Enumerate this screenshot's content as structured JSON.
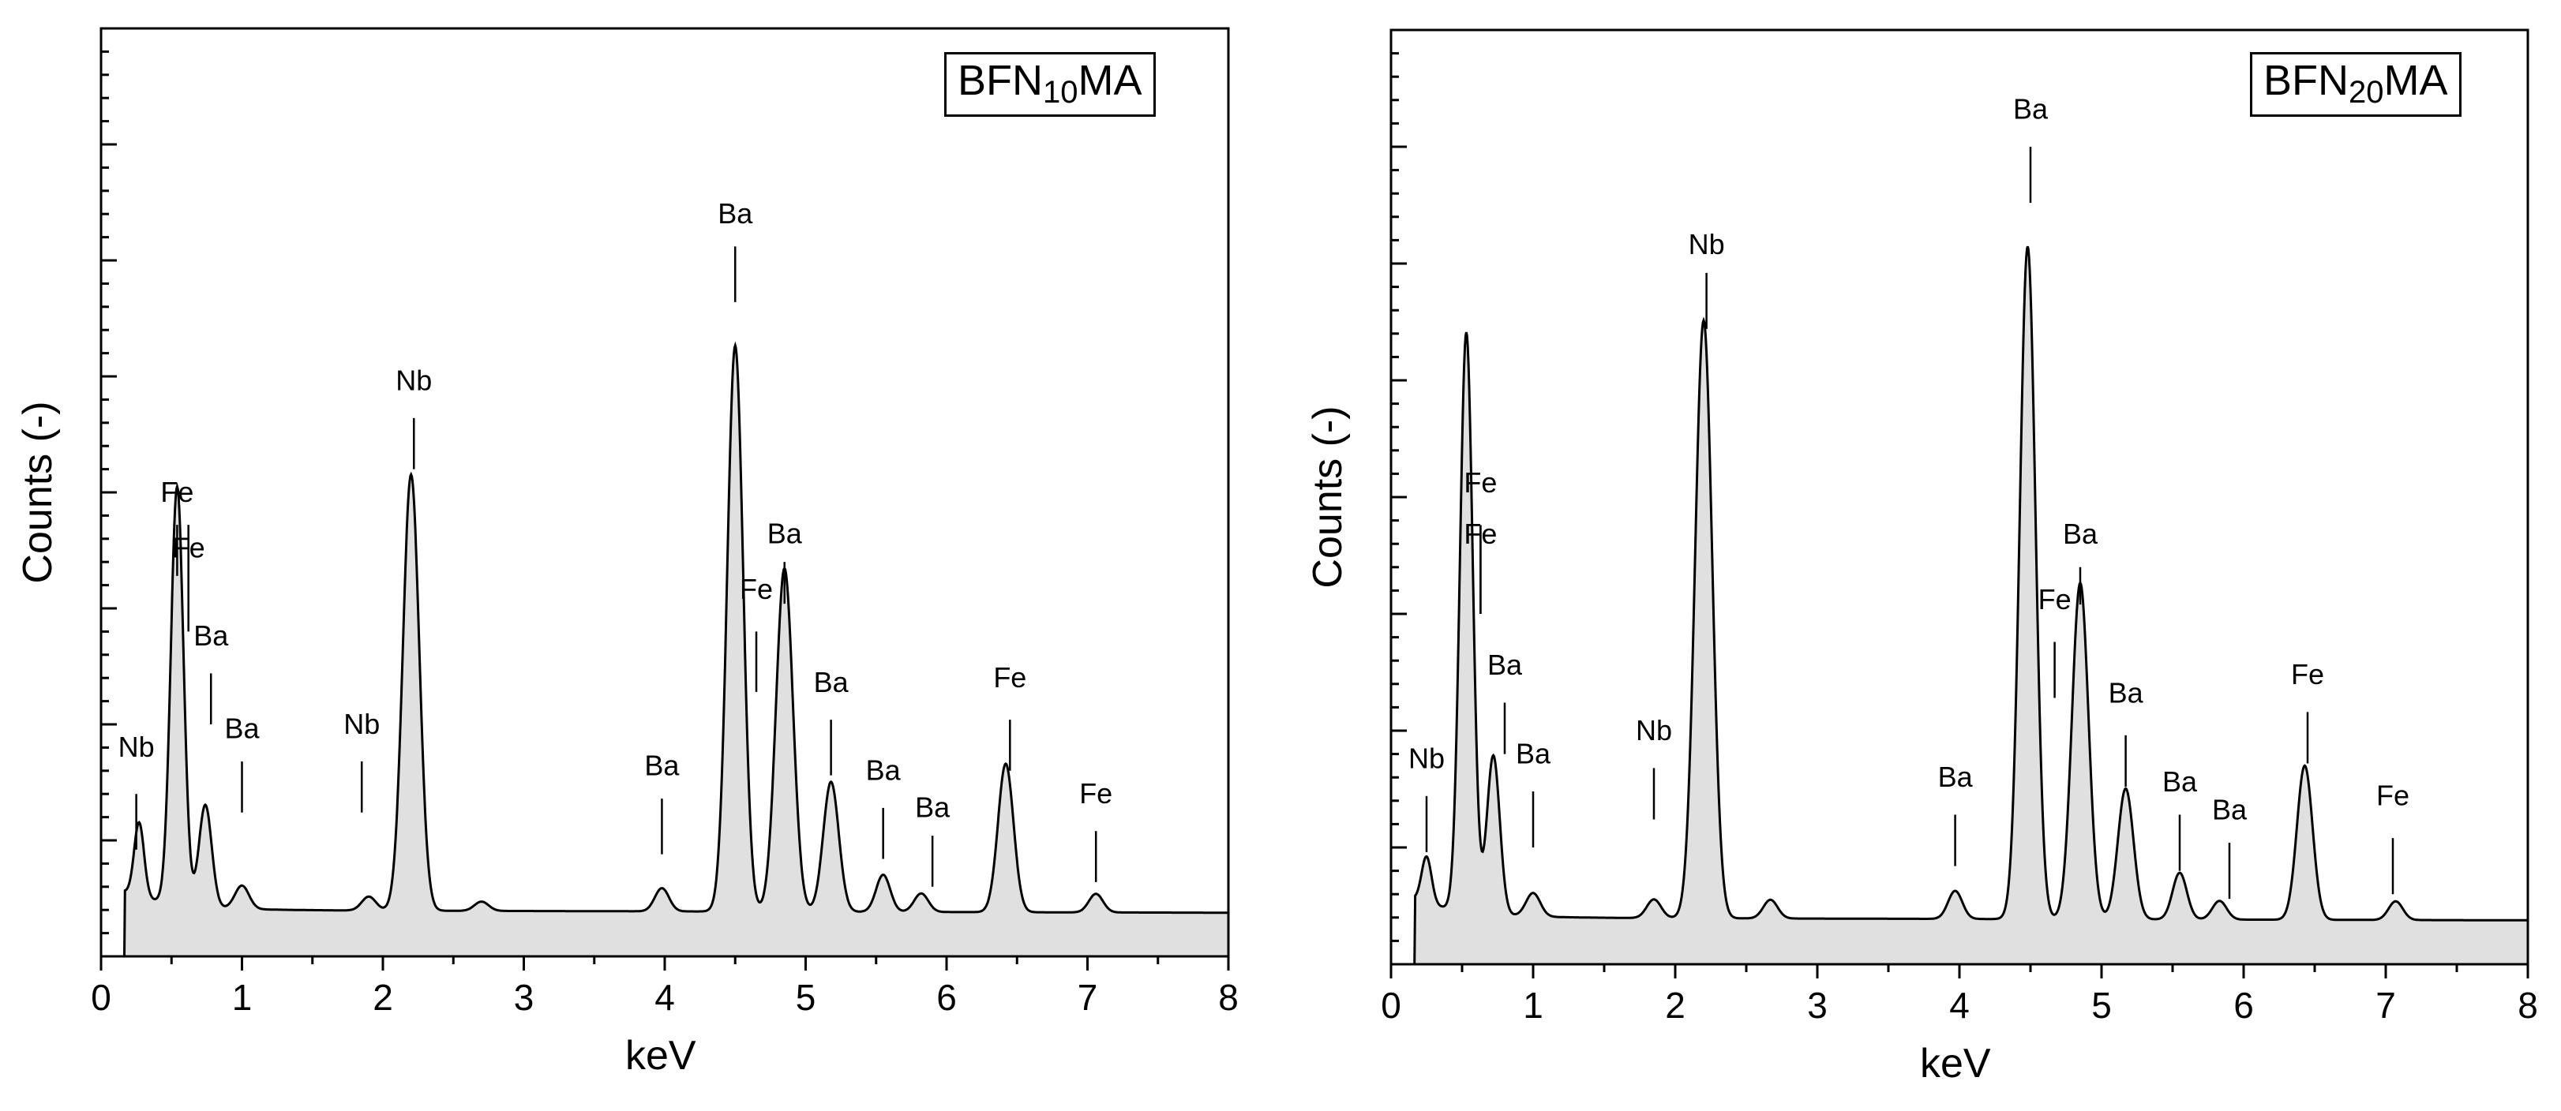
{
  "chart_data": [
    {
      "type": "line",
      "title_parts": {
        "prefix": "BFN",
        "subscript": "10",
        "suffix": "MA"
      },
      "xlabel": "keV",
      "ylabel": "Counts (-)",
      "xlim": [
        0,
        8
      ],
      "x_ticks": [
        "0",
        "1",
        "2",
        "3",
        "4",
        "5",
        "6",
        "7",
        "8"
      ],
      "ylim": [
        0,
        100
      ],
      "fill_color": "#e0e0e0",
      "line_color": "#000000",
      "baseline_start": 0.17,
      "background": 5,
      "peaks": [
        {
          "x": 0.27,
          "h": 8,
          "w": 0.035
        },
        {
          "x": 0.54,
          "h": 45,
          "w": 0.045
        },
        {
          "x": 0.74,
          "h": 11,
          "w": 0.045
        },
        {
          "x": 1.0,
          "h": 2.5,
          "w": 0.05
        },
        {
          "x": 1.9,
          "h": 1.5,
          "w": 0.05
        },
        {
          "x": 2.2,
          "h": 47,
          "w": 0.058
        },
        {
          "x": 2.7,
          "h": 1,
          "w": 0.05
        },
        {
          "x": 3.98,
          "h": 2.5,
          "w": 0.05
        },
        {
          "x": 4.5,
          "h": 61,
          "w": 0.056
        },
        {
          "x": 4.85,
          "h": 37,
          "w": 0.06
        },
        {
          "x": 5.18,
          "h": 14,
          "w": 0.055
        },
        {
          "x": 5.55,
          "h": 4,
          "w": 0.05
        },
        {
          "x": 5.82,
          "h": 2,
          "w": 0.05
        },
        {
          "x": 6.42,
          "h": 16,
          "w": 0.055
        },
        {
          "x": 7.06,
          "h": 2,
          "w": 0.05
        }
      ],
      "annotations": [
        {
          "text": "Nb",
          "x": 0.25,
          "y_text": 21.5,
          "line": [
            11.5,
            17.5
          ]
        },
        {
          "text": "Fe",
          "x": 0.54,
          "y_text": 49,
          "line": [
            41,
            46.5
          ]
        },
        {
          "text": "Fe",
          "x": 0.62,
          "y_text": 43,
          "line": [
            35,
            46.5
          ]
        },
        {
          "text": "Ba",
          "x": 0.78,
          "y_text": 33.5,
          "line": [
            25,
            30.5
          ]
        },
        {
          "text": "Ba",
          "x": 1.0,
          "y_text": 23.5,
          "line": [
            15.5,
            21
          ]
        },
        {
          "text": "Nb",
          "x": 1.85,
          "y_text": 24,
          "line": [
            15.5,
            21
          ]
        },
        {
          "text": "Nb",
          "x": 2.22,
          "y_text": 61,
          "line": [
            52.5,
            58
          ]
        },
        {
          "text": "Ba",
          "x": 3.98,
          "y_text": 19.5,
          "line": [
            11,
            17
          ]
        },
        {
          "text": "Ba",
          "x": 4.5,
          "y_text": 79,
          "line": [
            70.5,
            76.5
          ]
        },
        {
          "text": "Fe",
          "x": 4.65,
          "y_text": 38.5,
          "line": [
            28.5,
            35
          ]
        },
        {
          "text": "Ba",
          "x": 4.85,
          "y_text": 44.5,
          "line": [
            38,
            42.5
          ]
        },
        {
          "text": "Ba",
          "x": 5.18,
          "y_text": 28.5,
          "line": [
            19.5,
            25.5
          ]
        },
        {
          "text": "Ba",
          "x": 5.55,
          "y_text": 19,
          "line": [
            10.5,
            16
          ]
        },
        {
          "text": "Ba",
          "x": 5.9,
          "y_text": 15,
          "line": [
            7.5,
            13
          ]
        },
        {
          "text": "Fe",
          "x": 6.45,
          "y_text": 29,
          "line": [
            20,
            25.5
          ]
        },
        {
          "text": "Fe",
          "x": 7.06,
          "y_text": 16.5,
          "line": [
            8,
            13.5
          ]
        }
      ]
    },
    {
      "type": "line",
      "title_parts": {
        "prefix": "BFN",
        "subscript": "20",
        "suffix": "MA"
      },
      "xlabel": "keV",
      "ylabel": "Counts (-)",
      "xlim": [
        0,
        8
      ],
      "x_ticks": [
        "0",
        "1",
        "2",
        "3",
        "4",
        "5",
        "6",
        "7",
        "8"
      ],
      "ylim": [
        0,
        100
      ],
      "fill_color": "#e0e0e0",
      "line_color": "#000000",
      "baseline_start": 0.17,
      "background": 5,
      "peaks": [
        {
          "x": 0.25,
          "h": 5,
          "w": 0.035
        },
        {
          "x": 0.53,
          "h": 62,
          "w": 0.045
        },
        {
          "x": 0.72,
          "h": 17,
          "w": 0.045
        },
        {
          "x": 1.0,
          "h": 2.5,
          "w": 0.05
        },
        {
          "x": 1.85,
          "h": 2,
          "w": 0.05
        },
        {
          "x": 2.2,
          "h": 64,
          "w": 0.06
        },
        {
          "x": 2.67,
          "h": 2,
          "w": 0.05
        },
        {
          "x": 3.97,
          "h": 3,
          "w": 0.05
        },
        {
          "x": 4.48,
          "h": 72,
          "w": 0.055
        },
        {
          "x": 4.85,
          "h": 36,
          "w": 0.058
        },
        {
          "x": 5.17,
          "h": 14,
          "w": 0.055
        },
        {
          "x": 5.55,
          "h": 5,
          "w": 0.05
        },
        {
          "x": 5.83,
          "h": 2,
          "w": 0.05
        },
        {
          "x": 6.43,
          "h": 16.5,
          "w": 0.055
        },
        {
          "x": 7.07,
          "h": 2,
          "w": 0.05
        }
      ],
      "annotations": [
        {
          "text": "Nb",
          "x": 0.25,
          "y_text": 21,
          "line": [
            12,
            18
          ]
        },
        {
          "text": "Fe",
          "x": 0.63,
          "y_text": 50.5,
          "line": [
            37.5,
            47
          ]
        },
        {
          "text": "Fe",
          "x": 0.63,
          "y_text": 45,
          "line": [
            37.5,
            47
          ]
        },
        {
          "text": "Ba",
          "x": 0.8,
          "y_text": 31,
          "line": [
            22.5,
            28
          ]
        },
        {
          "text": "Ba",
          "x": 1.0,
          "y_text": 21.5,
          "line": [
            12.5,
            18.5
          ]
        },
        {
          "text": "Nb",
          "x": 1.85,
          "y_text": 24,
          "line": [
            15.5,
            21
          ]
        },
        {
          "text": "Nb",
          "x": 2.22,
          "y_text": 76,
          "line": [
            68,
            74
          ]
        },
        {
          "text": "Ba",
          "x": 3.97,
          "y_text": 19,
          "line": [
            10.5,
            16
          ]
        },
        {
          "text": "Ba",
          "x": 4.5,
          "y_text": 90.5,
          "line": [
            81.5,
            87.5
          ]
        },
        {
          "text": "Fe",
          "x": 4.67,
          "y_text": 38,
          "line": [
            28.5,
            34.5
          ]
        },
        {
          "text": "Ba",
          "x": 4.85,
          "y_text": 45,
          "line": [
            38.5,
            42.5
          ]
        },
        {
          "text": "Ba",
          "x": 5.17,
          "y_text": 28,
          "line": [
            19,
            24.5
          ]
        },
        {
          "text": "Ba",
          "x": 5.55,
          "y_text": 18.5,
          "line": [
            10,
            16
          ]
        },
        {
          "text": "Ba",
          "x": 5.9,
          "y_text": 15.5,
          "line": [
            7,
            13
          ]
        },
        {
          "text": "Fe",
          "x": 6.45,
          "y_text": 30,
          "line": [
            21.5,
            27
          ]
        },
        {
          "text": "Fe",
          "x": 7.05,
          "y_text": 17,
          "line": [
            7.5,
            13.5
          ]
        }
      ]
    }
  ]
}
